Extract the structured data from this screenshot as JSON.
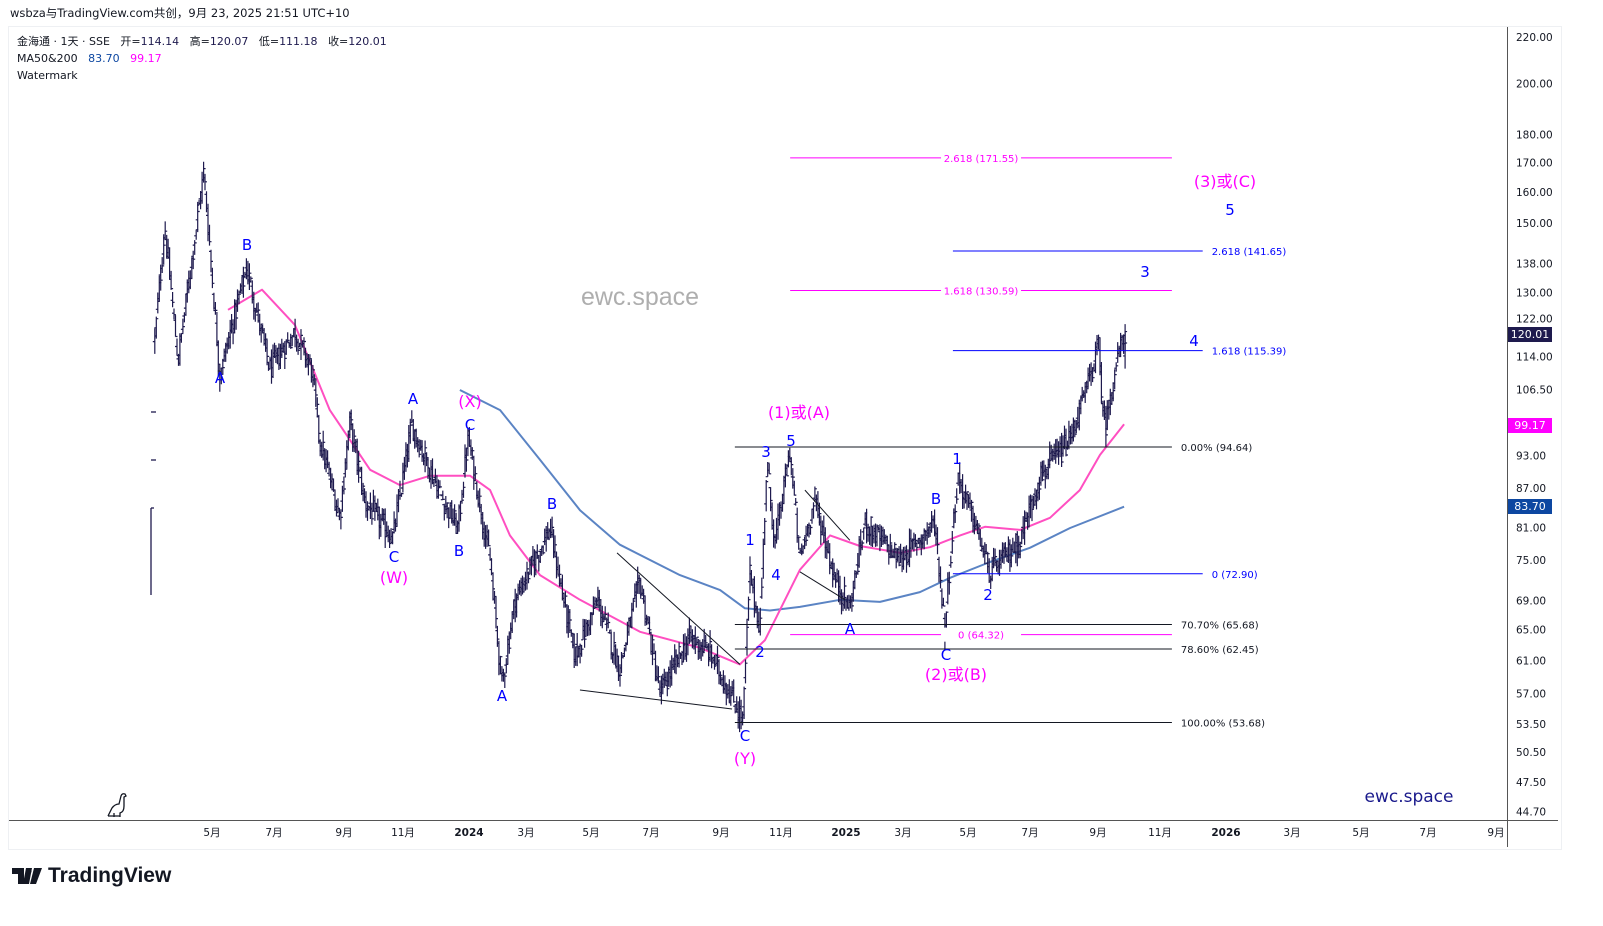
{
  "credit": "wsbza与TradingView.com共创，9月 23, 2025 21:51 UTC+10",
  "legend": {
    "symbol": "金海通 · 1天 · SSE",
    "open_label": "开=",
    "open": "114.14",
    "high_label": "高=",
    "high": "120.07",
    "low_label": "低=",
    "low": "111.18",
    "close_label": "收=",
    "close": "120.01",
    "ma_name": "MA50&200",
    "ma200_value": "83.70",
    "ma50_value": "99.17",
    "watermark_name": "Watermark"
  },
  "badges": {
    "last_price": "120.01",
    "ma50": "99.17",
    "ma200": "83.70"
  },
  "watermark_center": "ewc.space",
  "watermark_corner": "ewc.space",
  "logo_text": "TradingView",
  "colors": {
    "bars": "#1e1a4e",
    "ma50": "#ff4fc1",
    "ma200": "#5b84c4",
    "wave_blue": "#0000ff",
    "wave_magenta": "#ff00ff",
    "fib_black": "#131722",
    "fib_magenta": "#ff00ff",
    "fib_blue": "#0000ff",
    "last_badge": "#1e1a4e",
    "ma50_badge": "#ff00ff",
    "ma200_badge": "#0d47a1",
    "corner_watermark": "#1a1a8c"
  },
  "chart_data": {
    "type": "ohlc",
    "scale": "log",
    "x_unit": "months since Jan 2023",
    "ylim": [
      44.7,
      220
    ],
    "price_ticks": [
      220,
      200,
      180,
      170,
      160,
      150,
      138,
      130,
      122,
      114,
      106.5,
      93,
      87,
      81,
      75,
      69,
      65,
      61,
      57,
      53.5,
      50.5,
      47.5,
      44.7
    ],
    "time_labels": [
      {
        "label": "5月"
      },
      {
        "label": "7月"
      },
      {
        "label": "9月"
      },
      {
        "label": "11月"
      },
      {
        "label": "2024",
        "bold": true
      },
      {
        "label": "3月"
      },
      {
        "label": "5月"
      },
      {
        "label": "7月"
      },
      {
        "label": "9月"
      },
      {
        "label": "11月"
      },
      {
        "label": "2025",
        "bold": true
      },
      {
        "label": "3月"
      },
      {
        "label": "5月"
      },
      {
        "label": "7月"
      },
      {
        "label": "9月"
      },
      {
        "label": "11月"
      },
      {
        "label": "2026",
        "bold": true
      },
      {
        "label": "3月"
      },
      {
        "label": "5月"
      },
      {
        "label": "7月"
      },
      {
        "label": "9月"
      }
    ],
    "price_path": [
      [
        2.0,
        118
      ],
      [
        2.32,
        149
      ],
      [
        2.74,
        113
      ],
      [
        3.56,
        167
      ],
      [
        4.07,
        110
      ],
      [
        4.93,
        137
      ],
      [
        5.66,
        111
      ],
      [
        6.46,
        120
      ],
      [
        7.0,
        111
      ],
      [
        7.26,
        96
      ],
      [
        7.89,
        82
      ],
      [
        8.21,
        100
      ],
      [
        8.69,
        84.5
      ],
      [
        9.58,
        78.5
      ],
      [
        10.18,
        99
      ],
      [
        11.08,
        86
      ],
      [
        11.65,
        80
      ],
      [
        11.97,
        96.5
      ],
      [
        12.67,
        75
      ],
      [
        13.05,
        58
      ],
      [
        13.46,
        69
      ],
      [
        14.58,
        80
      ],
      [
        15.37,
        61.5
      ],
      [
        16.1,
        69
      ],
      [
        16.8,
        60
      ],
      [
        17.44,
        72
      ],
      [
        18.08,
        57
      ],
      [
        19.03,
        64
      ],
      [
        19.67,
        62
      ],
      [
        20.72,
        54
      ],
      [
        20.94,
        73
      ],
      [
        21.26,
        65
      ],
      [
        21.48,
        92
      ],
      [
        21.74,
        77.5
      ],
      [
        22.22,
        94
      ],
      [
        22.53,
        75
      ],
      [
        23.01,
        85
      ],
      [
        23.65,
        72
      ],
      [
        24.12,
        68
      ],
      [
        24.6,
        81
      ],
      [
        25.72,
        75
      ],
      [
        26.83,
        81
      ],
      [
        27.15,
        65
      ],
      [
        27.31,
        75
      ],
      [
        27.56,
        89
      ],
      [
        28.1,
        81
      ],
      [
        28.58,
        73
      ],
      [
        29.54,
        78
      ],
      [
        30.17,
        89
      ],
      [
        31.13,
        96
      ],
      [
        31.76,
        109
      ],
      [
        32.02,
        117
      ],
      [
        32.24,
        98
      ],
      [
        32.56,
        111
      ],
      [
        32.88,
        120.01
      ]
    ],
    "ma50": [
      [
        4.33,
        125.5
      ],
      [
        5.41,
        130.8
      ],
      [
        6.46,
        121.6
      ],
      [
        7.57,
        102.1
      ],
      [
        8.85,
        90.3
      ],
      [
        9.8,
        87.5
      ],
      [
        10.76,
        89.2
      ],
      [
        12.03,
        89.2
      ],
      [
        12.67,
        86.6
      ],
      [
        13.3,
        78.9
      ],
      [
        14.26,
        72.7
      ],
      [
        15.53,
        69.1
      ],
      [
        17.44,
        64.7
      ],
      [
        19.35,
        62.6
      ],
      [
        20.62,
        60.5
      ],
      [
        21.42,
        63.6
      ],
      [
        22.53,
        73.5
      ],
      [
        23.49,
        78.9
      ],
      [
        24.44,
        77.2
      ],
      [
        25.72,
        76.1
      ],
      [
        26.67,
        77.0
      ],
      [
        27.63,
        78.9
      ],
      [
        28.42,
        80.3
      ],
      [
        29.54,
        79.8
      ],
      [
        30.49,
        81.8
      ],
      [
        31.44,
        86.6
      ],
      [
        32.08,
        93.1
      ],
      [
        32.85,
        99.17
      ]
    ],
    "ma200": [
      [
        11.71,
        106.4
      ],
      [
        12.99,
        102.1
      ],
      [
        14.26,
        92.2
      ],
      [
        15.53,
        83.1
      ],
      [
        16.8,
        77.4
      ],
      [
        18.71,
        72.7
      ],
      [
        19.99,
        70.5
      ],
      [
        20.78,
        67.9
      ],
      [
        21.58,
        67.6
      ],
      [
        22.53,
        68.1
      ],
      [
        23.81,
        69.1
      ],
      [
        25.08,
        68.8
      ],
      [
        26.35,
        70.2
      ],
      [
        27.31,
        72.3
      ],
      [
        28.58,
        74.7
      ],
      [
        29.85,
        76.9
      ],
      [
        31.13,
        80.1
      ],
      [
        32.85,
        83.7
      ]
    ],
    "trend_lines": [
      [
        [
          16.71,
          76.1
        ],
        [
          20.62,
          60.5
        ]
      ],
      [
        [
          15.53,
          57.4
        ],
        [
          20.37,
          55.2
        ]
      ],
      [
        [
          22.69,
          86.6
        ],
        [
          24.12,
          78.1
        ]
      ],
      [
        [
          22.53,
          73.2
        ],
        [
          23.97,
          69.1
        ]
      ]
    ],
    "fib_levels": [
      {
        "group": "magenta",
        "price": 171.55,
        "label": "2.618 (171.55)",
        "t": [
          22.22,
          34.37
        ]
      },
      {
        "group": "magenta",
        "price": 130.59,
        "label": "1.618 (130.59)",
        "t": [
          22.22,
          34.37
        ]
      },
      {
        "group": "magenta",
        "price": 64.32,
        "label": "0 (64.32)",
        "t": [
          22.22,
          34.37
        ]
      },
      {
        "group": "blue",
        "price": 141.65,
        "label": "2.618 (141.65)",
        "t": [
          27.4,
          35.35
        ]
      },
      {
        "group": "blue",
        "price": 115.39,
        "label": "1.618 (115.39)",
        "t": [
          27.4,
          35.35
        ]
      },
      {
        "group": "blue",
        "price": 72.9,
        "label": "0 (72.90)",
        "t": [
          27.4,
          35.35
        ]
      },
      {
        "group": "black",
        "price": 94.64,
        "label": "0.00% (94.64)",
        "t": [
          20.46,
          34.37
        ]
      },
      {
        "group": "black",
        "price": 65.68,
        "label": "70.70% (65.68)",
        "t": [
          20.46,
          34.37
        ]
      },
      {
        "group": "black",
        "price": 62.45,
        "label": "78.60% (62.45)",
        "t": [
          20.46,
          34.37
        ]
      },
      {
        "group": "black",
        "price": 53.68,
        "label": "100.00% (53.68)",
        "t": [
          20.46,
          34.37
        ]
      }
    ],
    "wave_labels": [
      {
        "text": "B",
        "color": "blue"
      },
      {
        "text": "A",
        "color": "blue"
      },
      {
        "text": "C",
        "color": "blue"
      },
      {
        "text": "(W)",
        "color": "magenta"
      },
      {
        "text": "A",
        "color": "blue"
      },
      {
        "text": "(X)",
        "color": "magenta"
      },
      {
        "text": "C",
        "color": "blue"
      },
      {
        "text": "B",
        "color": "blue"
      },
      {
        "text": "B",
        "color": "blue"
      },
      {
        "text": "A",
        "color": "blue"
      },
      {
        "text": "C",
        "color": "blue"
      },
      {
        "text": "(Y)",
        "color": "magenta"
      },
      {
        "text": "1",
        "color": "blue"
      },
      {
        "text": "2",
        "color": "blue"
      },
      {
        "text": "3",
        "color": "blue"
      },
      {
        "text": "4",
        "color": "blue"
      },
      {
        "text": "5",
        "color": "blue"
      },
      {
        "text": "(1)或(A)",
        "color": "magenta"
      },
      {
        "text": "A",
        "color": "blue"
      },
      {
        "text": "B",
        "color": "blue"
      },
      {
        "text": "C",
        "color": "blue"
      },
      {
        "text": "(2)或(B)",
        "color": "magenta"
      },
      {
        "text": "1",
        "color": "blue"
      },
      {
        "text": "2",
        "color": "blue"
      },
      {
        "text": "4",
        "color": "blue"
      },
      {
        "text": "3",
        "color": "blue"
      },
      {
        "text": "5",
        "color": "blue"
      },
      {
        "text": "(3)或(C)",
        "color": "magenta"
      }
    ]
  }
}
